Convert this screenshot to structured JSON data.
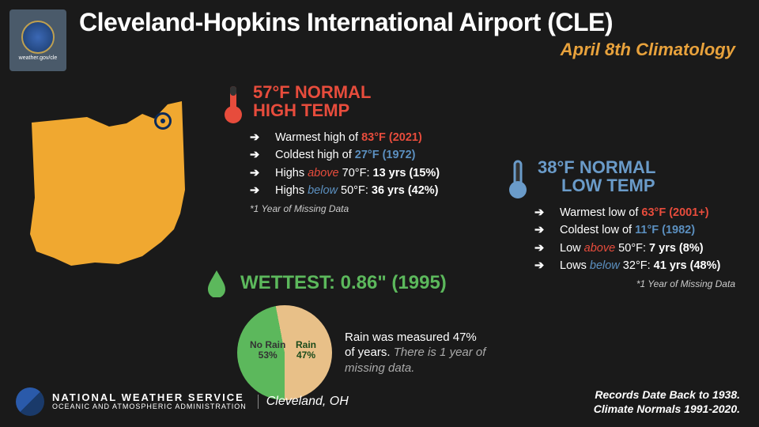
{
  "header": {
    "title": "Cleveland-Hopkins International Airport (CLE)",
    "subtitle": "April 8th Climatology",
    "subtitle_color": "#e8a23c",
    "logo_url_label": "weather.gov/cle"
  },
  "ohio": {
    "fill": "#f0a830",
    "marker_color": "#0a2a5a"
  },
  "high": {
    "color": "#e74c3c",
    "value": "57°F",
    "label_line1": "NORMAL",
    "label_line2": "HIGH TEMP",
    "bullets": [
      {
        "pre": "Warmest high of ",
        "val": "83°F (2021)",
        "cls": "hot"
      },
      {
        "pre": "Coldest high of ",
        "val": "27°F (1972)",
        "cls": "cold"
      },
      {
        "pre": "Highs ",
        "em": "above",
        "em_cls": "em-red",
        "mid": " 70°F: ",
        "bold": "13 yrs (15%)"
      },
      {
        "pre": "Highs ",
        "em": "below",
        "em_cls": "em-blue",
        "mid": " 50°F: ",
        "bold": "36 yrs (42%)"
      }
    ],
    "note": "*1 Year of Missing Data"
  },
  "low": {
    "color": "#6a9bc9",
    "value": "38°F",
    "label_line1": "NORMAL",
    "label_line2": "LOW TEMP",
    "bullets": [
      {
        "pre": "Warmest low of ",
        "val": "63°F (2001+)",
        "cls": "hot"
      },
      {
        "pre": "Coldest low of ",
        "val": "11°F (1982)",
        "cls": "cold"
      },
      {
        "pre": "Low ",
        "em": "above",
        "em_cls": "em-red",
        "mid": " 50°F: ",
        "bold": "7 yrs (8%)"
      },
      {
        "pre": "Lows ",
        "em": "below",
        "em_cls": "em-blue",
        "mid": " 32°F: ",
        "bold": "41 yrs (48%)"
      }
    ],
    "note": "*1 Year of Missing Data"
  },
  "wet": {
    "color": "#5cb85c",
    "title": "WETTEST: 0.86\" (1995)",
    "pie": {
      "rain_pct": 47,
      "norain_pct": 53,
      "rain_color": "#5cb85c",
      "norain_color": "#e8c088",
      "rain_label": "Rain",
      "norain_label": "No Rain"
    },
    "text_main": "Rain was measured 47% of years. ",
    "text_miss": "There is 1 year of missing data."
  },
  "footer": {
    "agency_main": "NATIONAL WEATHER SERVICE",
    "agency_sub": "OCEANIC AND ATMOSPHERIC ADMINISTRATION",
    "city": "Cleveland, OH",
    "records_line1": "Records Date Back to 1938.",
    "records_line2": "Climate Normals 1991-2020."
  }
}
